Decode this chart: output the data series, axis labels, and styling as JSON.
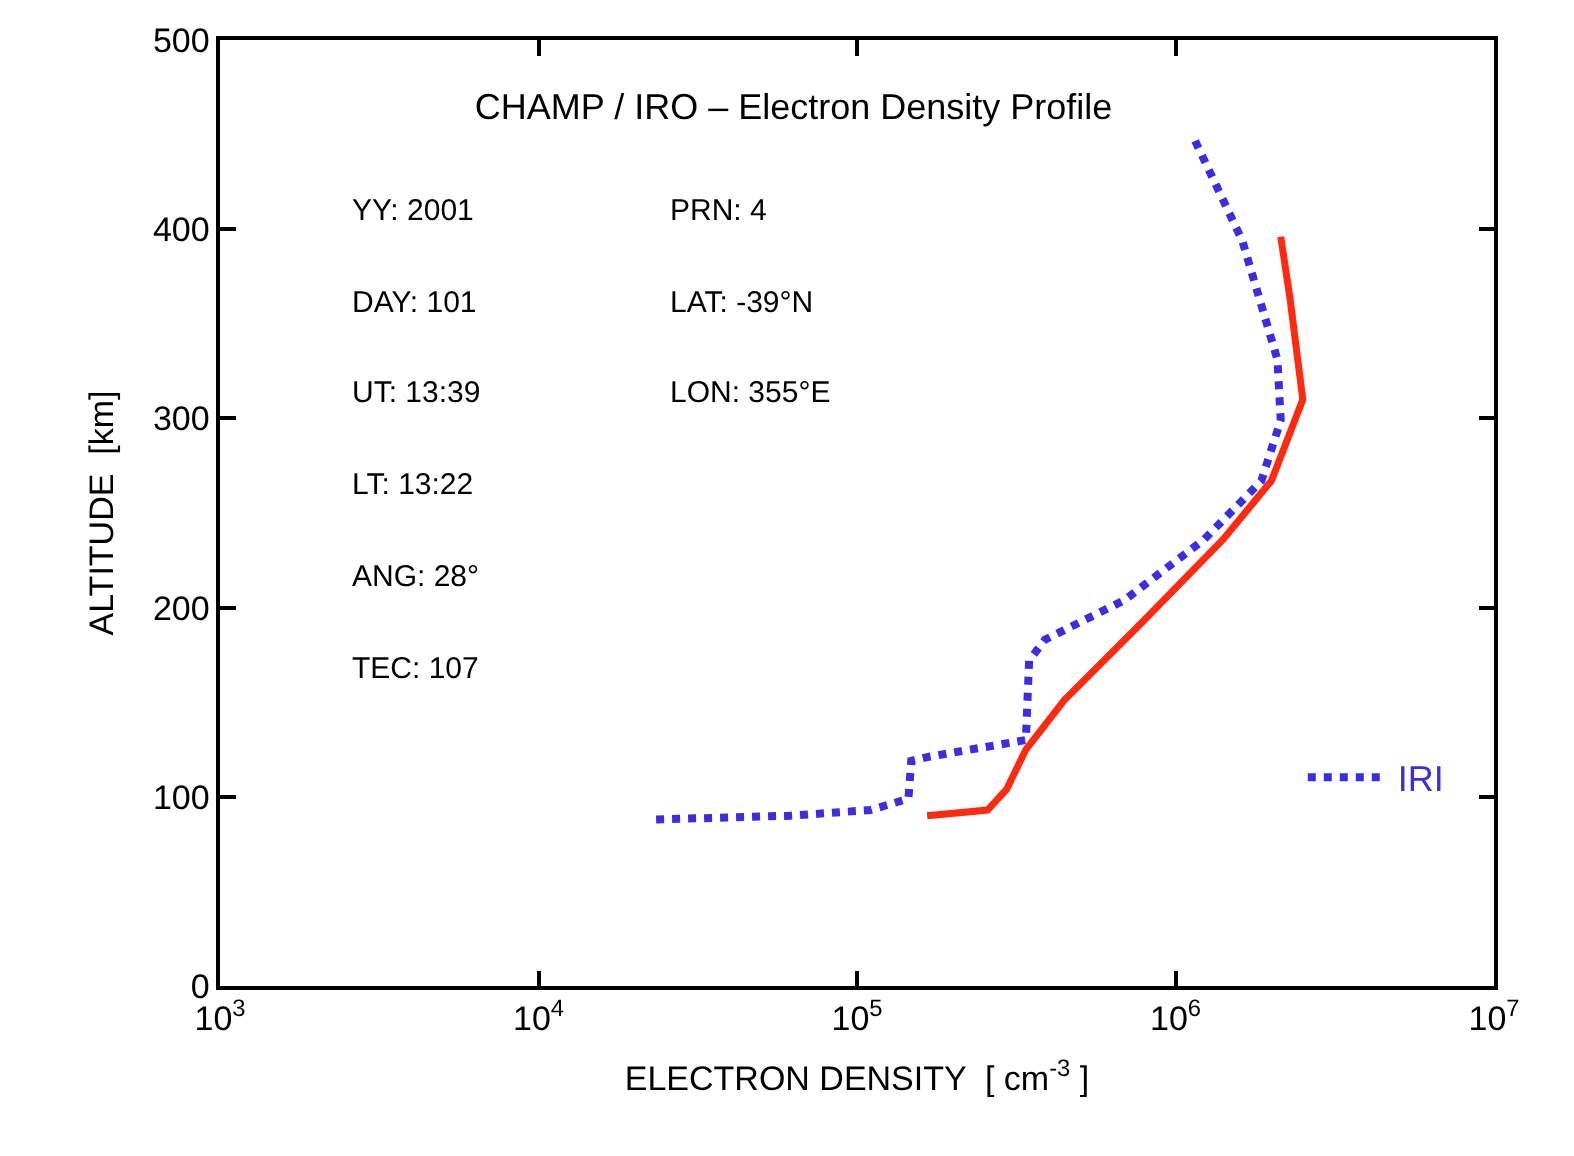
{
  "chart_data": {
    "type": "line",
    "title": "CHAMP / IRO – Electron Density Profile",
    "xlabel": "ELECTRON DENSITY  [ cm$^{-3}$ ]",
    "ylabel": "ALTITUDE  [km]",
    "log": "x",
    "legend": "bottom right",
    "xlim": [
      1000,
      10000000
    ],
    "ylim": [
      0,
      500
    ],
    "xticks": [
      {
        "value": 1000,
        "label": "10$^{3}$"
      },
      {
        "value": 10000,
        "label": "10$^{4}$"
      },
      {
        "value": 100000,
        "label": "10$^{5}$"
      },
      {
        "value": 1000000,
        "label": "10$^{6}$"
      },
      {
        "value": 10000000,
        "label": "10$^{7}$"
      }
    ],
    "yticks": [
      0,
      100,
      200,
      300,
      400,
      500
    ],
    "annotations": [
      "YY: 2001",
      "DAY: 101",
      "UT: 13:39",
      "LT: 13:22",
      "ANG: 28°",
      "TEC: 107",
      "PRN: 4",
      "LAT: -39°N",
      "LON: 355°E"
    ],
    "series": [
      {
        "color": "#ff2a10",
        "line_style": "solid",
        "x": [
          166000,
          257000,
          295000,
          339000,
          447000,
          794000,
          1410000,
          2000000,
          2510000,
          2290000,
          2140000
        ],
        "values": [
          90,
          93,
          104,
          125,
          151,
          193,
          236,
          267,
          310,
          363,
          396
        ]
      },
      {
        "name": "IRI",
        "color": "#3a2ee0",
        "line_style": "dotted",
        "x": [
          23400,
          61700,
          110000,
          145000,
          148000,
          166000,
          339000,
          347000,
          389000,
          692000,
          1230000,
          1860000,
          2140000,
          2090000,
          1620000,
          1150000
        ],
        "values": [
          88,
          90,
          93,
          99,
          119,
          121,
          130,
          172,
          183,
          204,
          236,
          267,
          299,
          331,
          394,
          447
        ]
      }
    ]
  }
}
